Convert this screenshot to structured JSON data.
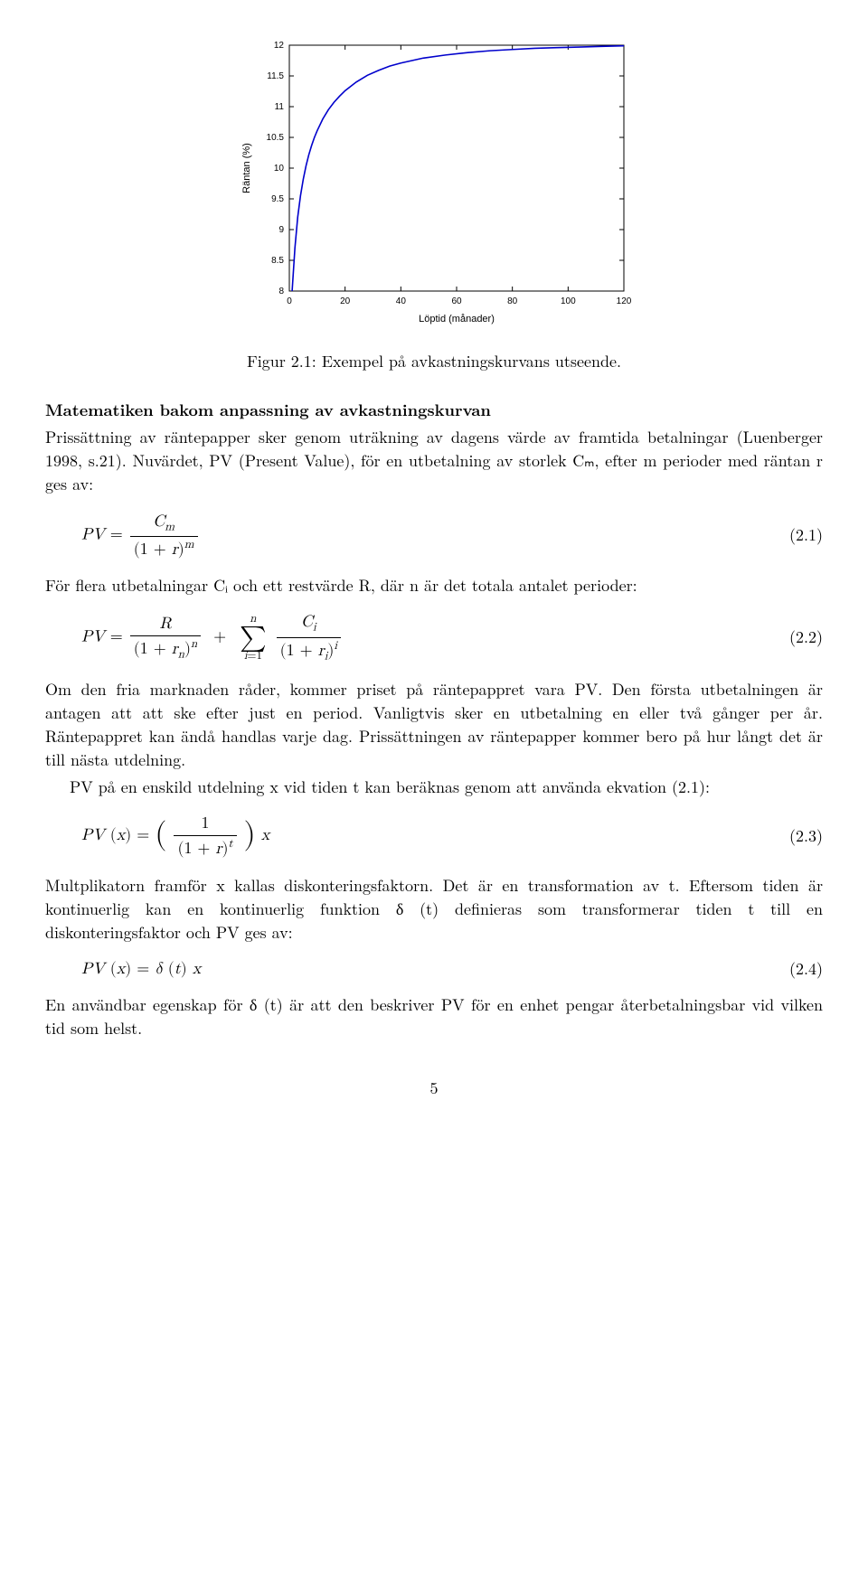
{
  "chart": {
    "type": "line",
    "xlabel": "Löptid (månader)",
    "ylabel": "Räntan (%)",
    "xlim": [
      0,
      120
    ],
    "ylim": [
      8,
      12
    ],
    "xtick_step": 20,
    "ytick_step": 0.5,
    "xticks": [
      "0",
      "20",
      "40",
      "60",
      "80",
      "100",
      "120"
    ],
    "yticks": [
      "8",
      "8.5",
      "9",
      "9.5",
      "10",
      "10.5",
      "11",
      "11.5",
      "12"
    ],
    "line_color": "#0000cc",
    "line_width": 1.6,
    "tick_color": "#000000",
    "box_color": "#000000",
    "background_color": "#ffffff",
    "label_fontsize": 11,
    "tick_fontsize": 10,
    "x_values": [
      1,
      2,
      3,
      4,
      5,
      6,
      7,
      8,
      9,
      10,
      12,
      14,
      16,
      18,
      20,
      24,
      28,
      32,
      36,
      40,
      48,
      56,
      64,
      72,
      80,
      88,
      96,
      104,
      112,
      120
    ],
    "y_values": [
      8.0,
      8.7,
      9.2,
      9.55,
      9.82,
      10.04,
      10.22,
      10.37,
      10.5,
      10.61,
      10.8,
      10.95,
      11.07,
      11.17,
      11.26,
      11.4,
      11.51,
      11.59,
      11.66,
      11.71,
      11.79,
      11.84,
      11.88,
      11.91,
      11.93,
      11.95,
      11.96,
      11.97,
      11.98,
      11.99
    ]
  },
  "caption": "Figur 2.1: Exempel på avkastningskurvans utseende.",
  "section_heading": "Matematiken bakom anpassning av avkastningskurvan",
  "para1": "Prissättning av räntepapper sker genom uträkning av dagens värde av framtida betalningar (Luenberger 1998, s.21). Nuvärdet, PV (Present Value), för en utbetalning av storlek Cₘ, efter m perioder med räntan r ges av:",
  "eq1_num": "(2.1)",
  "para2": "För flera utbetalningar Cᵢ och ett restvärde R, där n är det totala antalet perioder:",
  "eq2_num": "(2.2)",
  "para3": "Om den fria marknaden råder, kommer priset på räntepappret vara PV. Den första utbetalningen är antagen att att ske efter just en period. Vanligtvis sker en utbetalning en eller två gånger per år. Räntepappret kan ändå handlas varje dag. Prissättningen av räntepapper kommer bero på hur långt det är till nästa utdelning.",
  "para4": "PV på en enskild utdelning x vid tiden t kan beräknas genom att använda ekvation (2.1):",
  "eq3_num": "(2.3)",
  "para5": "Multplikatorn framför x kallas diskonteringsfaktorn. Det är en transformation av t. Eftersom tiden är kontinuerlig kan en kontinuerlig funktion δ (t) definieras som transformerar tiden t till en diskonteringsfaktor och PV ges av:",
  "eq4_num": "(2.4)",
  "para6": "En användbar egenskap för δ (t) är att den beskriver PV för en enhet pengar återbetalningsbar vid vilken tid som helst.",
  "page_number": "5"
}
